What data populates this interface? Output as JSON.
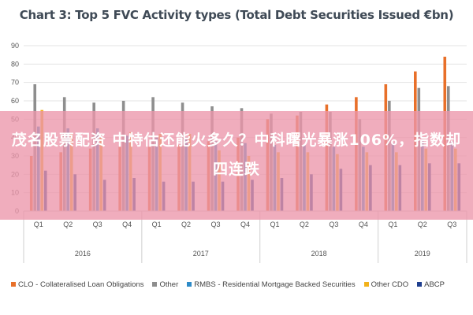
{
  "chart_data": {
    "type": "bar",
    "title": "Chart 3: Top 5 FVC Activity types (Total Debt Securities Issued €bn)",
    "ylim": [
      0,
      90
    ],
    "yticks": [
      0,
      10,
      20,
      30,
      40,
      50,
      60,
      70,
      80,
      90
    ],
    "grid": true,
    "legend_position": "bottom",
    "categories": [
      "Q1",
      "Q2",
      "Q3",
      "Q4",
      "Q1",
      "Q2",
      "Q3",
      "Q4",
      "Q1",
      "Q2",
      "Q3",
      "Q4",
      "Q1",
      "Q2",
      "Q3"
    ],
    "groups": [
      {
        "label": "2016",
        "count": 4
      },
      {
        "label": "2017",
        "count": 4
      },
      {
        "label": "2018",
        "count": 4
      },
      {
        "label": "2019",
        "count": 3
      }
    ],
    "series": [
      {
        "name": "CLO - Collateralised Loan Obligations",
        "color": "#e8702a",
        "values": [
          30,
          32,
          34,
          35,
          35,
          36,
          38,
          40,
          50,
          52,
          58,
          62,
          69,
          76,
          84
        ]
      },
      {
        "name": "Other",
        "color": "#8e8e8e",
        "values": [
          69,
          62,
          59,
          60,
          62,
          59,
          57,
          56,
          53,
          54,
          54,
          50,
          60,
          67,
          68
        ]
      },
      {
        "name": "RMBS - Residential Mortgage Backed Securities",
        "color": "#2e8bc8",
        "values": [
          46,
          45,
          45,
          41,
          40,
          40,
          38,
          37,
          36,
          36,
          35,
          35,
          37,
          38,
          38
        ]
      },
      {
        "name": "Other CDO",
        "color": "#f2b21b",
        "values": [
          55,
          42,
          40,
          43,
          42,
          42,
          33,
          30,
          32,
          32,
          31,
          32,
          32,
          34,
          34
        ]
      },
      {
        "name": "ABCP",
        "color": "#1f3f8f",
        "values": [
          22,
          20,
          17,
          18,
          16,
          16,
          16,
          17,
          18,
          20,
          23,
          25,
          25,
          26,
          26
        ]
      }
    ]
  },
  "overlay": {
    "text": "茂名股票配资 中特估还能火多久？中科曙光暴涨106%，指数却四连跌"
  }
}
